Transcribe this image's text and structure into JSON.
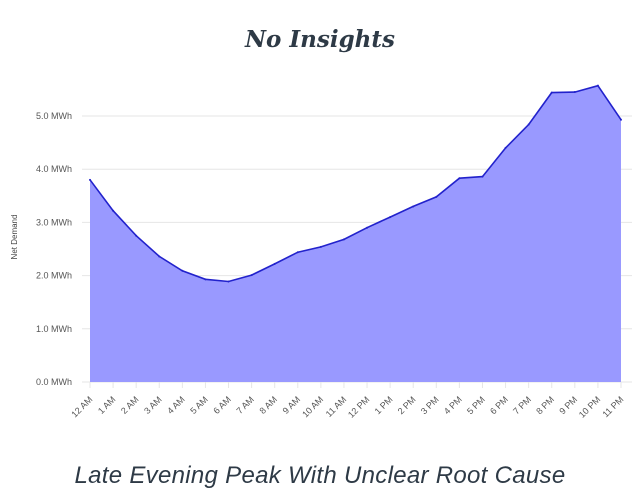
{
  "title": "No Insights",
  "caption": "Late Evening Peak With Unclear Root Cause",
  "chart_data": {
    "type": "area",
    "ylabel": "Net Demand",
    "xlabel": "",
    "categories": [
      "12 AM",
      "1 AM",
      "2 AM",
      "3 AM",
      "4 AM",
      "5 AM",
      "6 AM",
      "7 AM",
      "8 AM",
      "9 AM",
      "10 AM",
      "11 AM",
      "12 PM",
      "1 PM",
      "2 PM",
      "3 PM",
      "4 PM",
      "5 PM",
      "6 PM",
      "7 PM",
      "8 PM",
      "9 PM",
      "10 PM",
      "11 PM"
    ],
    "y_ticks": [
      0,
      1,
      2,
      3,
      4,
      5
    ],
    "y_tick_labels": [
      "0.0 MWh",
      "1.0 MWh",
      "2.0 MWh",
      "3.0 MWh",
      "4.0 MWh",
      "5.0 MWh"
    ],
    "ylim": [
      0,
      5.8
    ],
    "series": [
      {
        "values": [
          3.8,
          3.22,
          2.75,
          2.36,
          2.09,
          1.93,
          1.89,
          2.01,
          2.22,
          2.44,
          2.54,
          2.68,
          2.9,
          3.1,
          3.3,
          3.48,
          3.83,
          3.86,
          4.4,
          4.84,
          5.44,
          5.45,
          5.57,
          4.93
        ]
      }
    ],
    "grid": true,
    "legend": "none",
    "colors": {
      "fill": "#9999ff",
      "line": "#2222cc",
      "grid": "#e6e6e6"
    }
  }
}
